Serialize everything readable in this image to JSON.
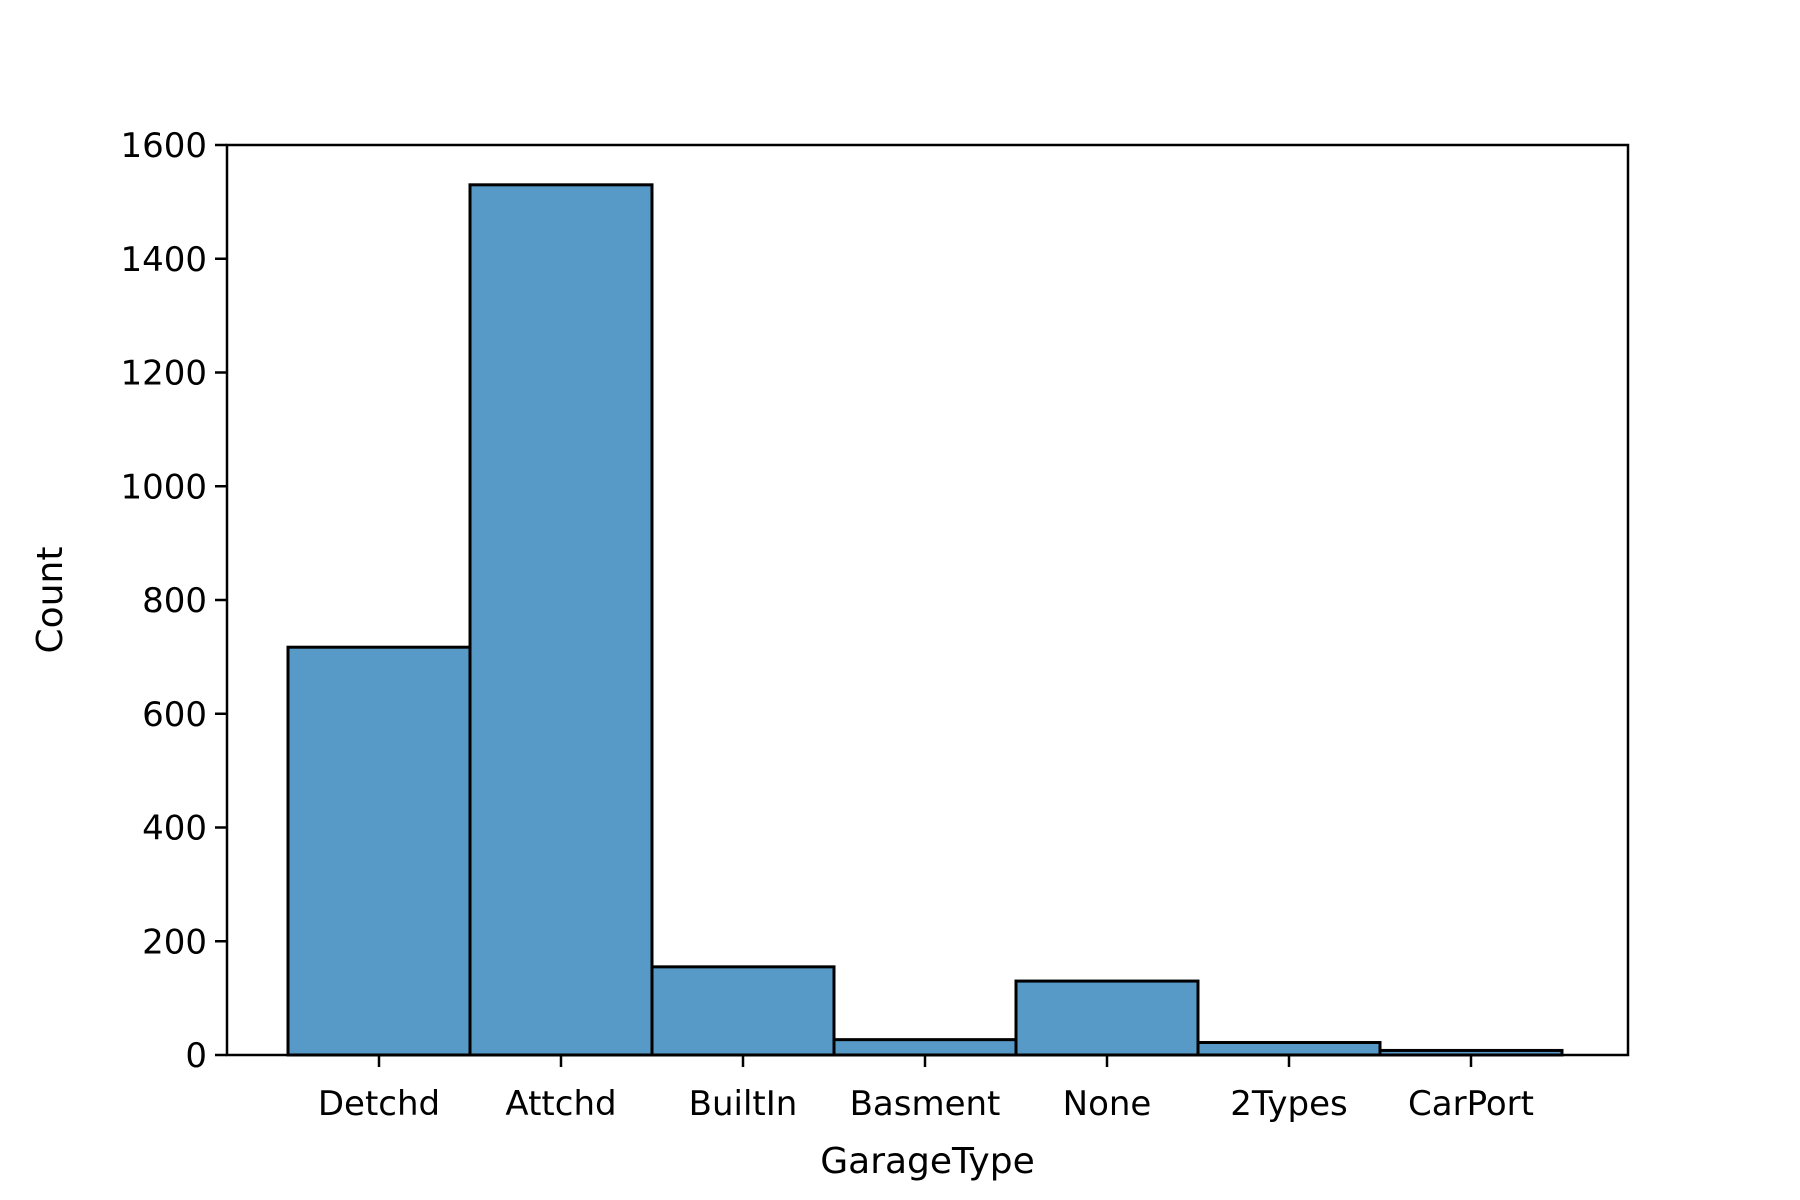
{
  "chart_data": {
    "type": "bar",
    "title": "",
    "xlabel": "GarageType",
    "ylabel": "Count",
    "categories": [
      "Detchd",
      "Attchd",
      "BuiltIn",
      "Basment",
      "None",
      "2Types",
      "CarPort"
    ],
    "values": [
      717,
      1530,
      155,
      27,
      130,
      22,
      8
    ],
    "ylim": [
      0,
      1600
    ],
    "yticks": [
      0,
      200,
      400,
      600,
      800,
      1000,
      1200,
      1400,
      1600
    ],
    "grid": false,
    "legend": "none",
    "bar_color": "#5799c7",
    "edge_color": "#000000"
  }
}
